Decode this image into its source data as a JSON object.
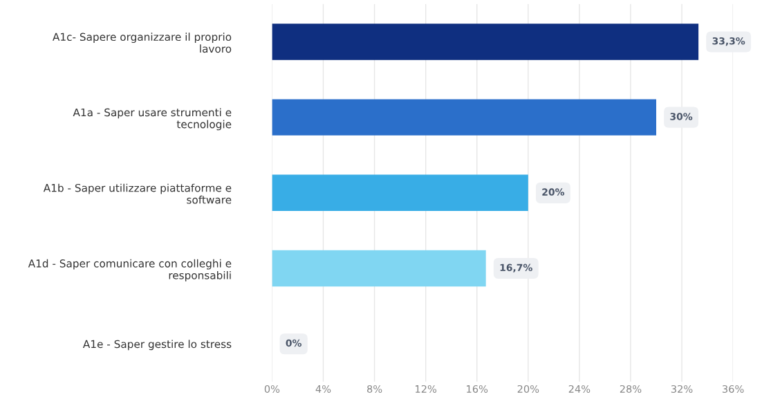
{
  "chart_data": {
    "type": "bar",
    "orientation": "horizontal",
    "categories": [
      "A1c- Sapere organizzare il proprio\nlavoro",
      "A1a - Saper usare strumenti e\ntecnologie",
      "A1b - Saper utilizzare piattaforme e\nsoftware",
      "A1d - Saper comunicare con colleghi e\nresponsabili",
      "A1e - Saper gestire lo stress"
    ],
    "values": [
      33.3,
      30,
      20,
      16.7,
      0
    ],
    "colors": [
      "#0f2f80",
      "#2b6fca",
      "#38ade6",
      "#80d6f2",
      "#b9e6f7"
    ],
    "value_labels": [
      "33,3%",
      "30%",
      "20%",
      "16,7%",
      "0%"
    ],
    "xlim": [
      0,
      36
    ],
    "xticks": [
      {
        "value": 0,
        "label": "0%"
      },
      {
        "value": 4,
        "label": "4%"
      },
      {
        "value": 8,
        "label": "8%"
      },
      {
        "value": 12,
        "label": "12%"
      },
      {
        "value": 16,
        "label": "16%"
      },
      {
        "value": 20,
        "label": "20%"
      },
      {
        "value": 24,
        "label": "24%"
      },
      {
        "value": 28,
        "label": "28%"
      },
      {
        "value": 32,
        "label": "32%"
      },
      {
        "value": 36,
        "label": "36%"
      }
    ],
    "grid": "x"
  }
}
